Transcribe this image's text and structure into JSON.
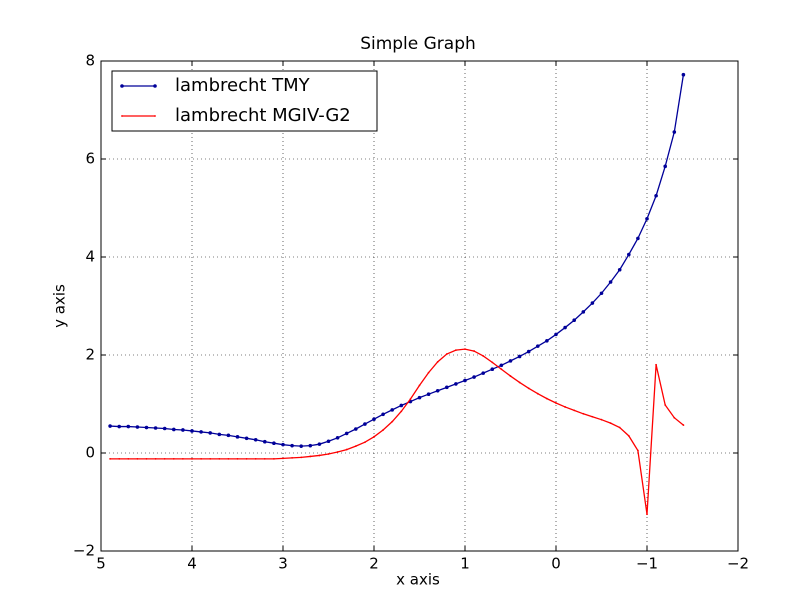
{
  "chart_data": {
    "type": "line",
    "title": "Simple Graph",
    "xlabel": "x axis",
    "ylabel": "y axis",
    "xlim": [
      5,
      -2
    ],
    "ylim": [
      -2,
      8
    ],
    "xticks": [
      5,
      4,
      3,
      2,
      1,
      0,
      {
        "value": -1,
        "label": "−1"
      },
      {
        "value": -2,
        "label": "−2"
      }
    ],
    "yticks": [
      {
        "value": -2,
        "label": "−2"
      },
      0,
      2,
      4,
      6,
      8
    ],
    "grid": true,
    "legend": "upper left",
    "x": [
      4.9,
      4.8,
      4.7,
      4.6,
      4.5,
      4.4,
      4.3,
      4.2,
      4.1,
      4.0,
      3.9,
      3.8,
      3.7,
      3.6,
      3.5,
      3.4,
      3.3,
      3.2,
      3.1,
      3.0,
      2.9,
      2.8,
      2.7,
      2.6,
      2.5,
      2.4,
      2.3,
      2.2,
      2.1,
      2.0,
      1.9,
      1.8,
      1.7,
      1.6,
      1.5,
      1.4,
      1.3,
      1.2,
      1.1,
      1.0,
      0.9,
      0.8,
      0.7,
      0.6,
      0.5,
      0.4,
      0.3,
      0.2,
      0.1,
      0.0,
      -0.1,
      -0.2,
      -0.3,
      -0.4,
      -0.5,
      -0.6,
      -0.7,
      -0.8,
      -0.9,
      -1.0,
      -1.1,
      -1.2,
      -1.3,
      -1.4
    ],
    "series": [
      {
        "name": "lambrecht TMY",
        "color": "#000099",
        "marker": "dot",
        "values": [
          0.55,
          0.54,
          0.54,
          0.53,
          0.52,
          0.51,
          0.5,
          0.48,
          0.47,
          0.45,
          0.43,
          0.41,
          0.38,
          0.36,
          0.33,
          0.3,
          0.27,
          0.23,
          0.2,
          0.17,
          0.15,
          0.14,
          0.15,
          0.18,
          0.24,
          0.31,
          0.4,
          0.49,
          0.59,
          0.69,
          0.79,
          0.88,
          0.97,
          1.05,
          1.13,
          1.2,
          1.27,
          1.34,
          1.41,
          1.48,
          1.55,
          1.63,
          1.71,
          1.79,
          1.88,
          1.97,
          2.07,
          2.18,
          2.29,
          2.42,
          2.56,
          2.71,
          2.88,
          3.06,
          3.26,
          3.49,
          3.74,
          4.05,
          4.38,
          4.78,
          5.25,
          5.85,
          6.55,
          7.72
        ]
      },
      {
        "name": "lambrecht MGIV-G2",
        "color": "#ff0000",
        "marker": "tiny",
        "values": [
          -0.12,
          -0.12,
          -0.12,
          -0.12,
          -0.12,
          -0.12,
          -0.12,
          -0.12,
          -0.12,
          -0.12,
          -0.12,
          -0.12,
          -0.12,
          -0.12,
          -0.12,
          -0.12,
          -0.12,
          -0.12,
          -0.12,
          -0.11,
          -0.1,
          -0.09,
          -0.07,
          -0.05,
          -0.02,
          0.02,
          0.07,
          0.14,
          0.22,
          0.33,
          0.47,
          0.64,
          0.85,
          1.1,
          1.38,
          1.64,
          1.86,
          2.02,
          2.1,
          2.12,
          2.08,
          1.98,
          1.85,
          1.71,
          1.57,
          1.44,
          1.32,
          1.21,
          1.11,
          1.02,
          0.94,
          0.87,
          0.8,
          0.74,
          0.68,
          0.61,
          0.52,
          0.35,
          0.05,
          -1.25,
          1.8,
          0.98,
          0.72,
          0.57
        ]
      }
    ]
  }
}
